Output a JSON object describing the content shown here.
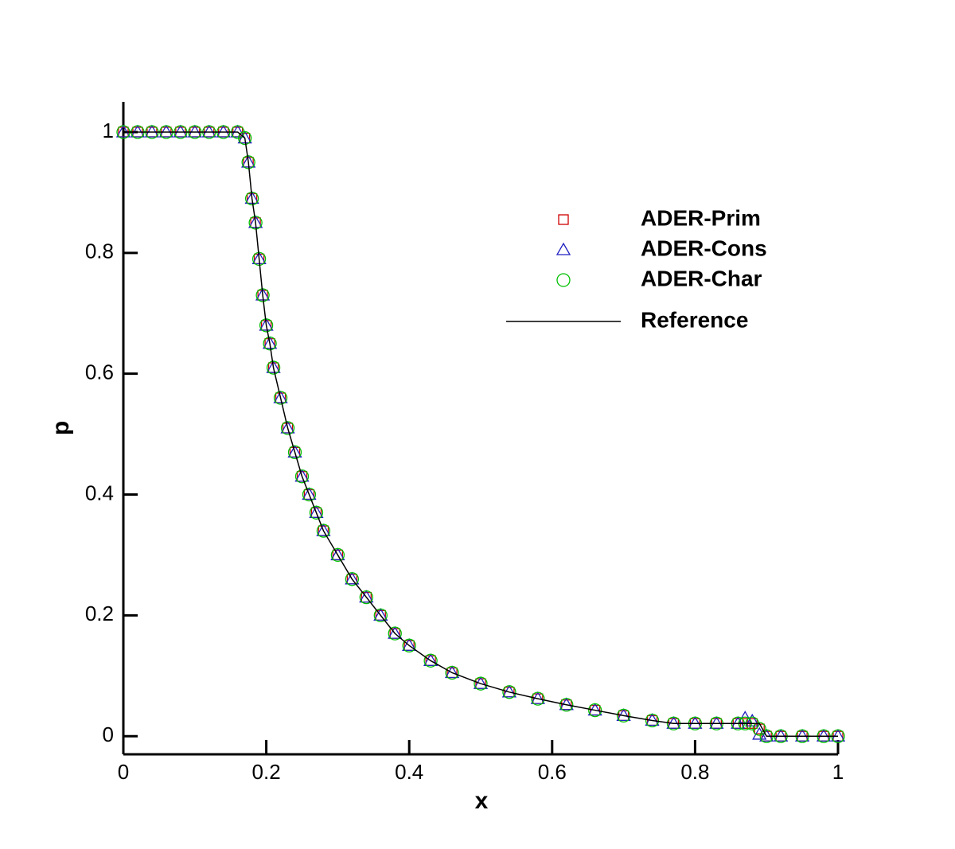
{
  "chart_data": {
    "type": "scatter",
    "xlabel": "x",
    "ylabel": "p",
    "x": [
      0,
      0.02,
      0.04,
      0.06,
      0.08,
      0.1,
      0.12,
      0.14,
      0.16,
      0.17,
      0.175,
      0.18,
      0.185,
      0.19,
      0.195,
      0.2,
      0.205,
      0.21,
      0.22,
      0.23,
      0.24,
      0.25,
      0.26,
      0.27,
      0.28,
      0.3,
      0.32,
      0.34,
      0.36,
      0.38,
      0.4,
      0.43,
      0.46,
      0.5,
      0.54,
      0.58,
      0.62,
      0.66,
      0.7,
      0.74,
      0.77,
      0.8,
      0.83,
      0.86,
      0.87,
      0.88,
      0.89,
      0.9,
      0.92,
      0.95,
      0.98,
      1
    ],
    "series": [
      {
        "name": "ADER-Prim",
        "color": "#d00000",
        "marker": "square",
        "values": [
          1,
          1,
          1,
          1,
          1,
          1,
          1,
          1,
          1,
          0.99,
          0.95,
          0.89,
          0.85,
          0.79,
          0.73,
          0.68,
          0.65,
          0.61,
          0.56,
          0.51,
          0.47,
          0.43,
          0.4,
          0.37,
          0.34,
          0.3,
          0.26,
          0.23,
          0.2,
          0.17,
          0.15,
          0.125,
          0.105,
          0.087,
          0.073,
          0.062,
          0.052,
          0.043,
          0.034,
          0.026,
          0.021,
          0.021,
          0.021,
          0.021,
          0.021,
          0.021,
          0.012,
          0,
          0,
          0,
          0,
          0
        ]
      },
      {
        "name": "ADER-Cons",
        "color": "#2020c0",
        "marker": "triangle",
        "values": [
          1,
          1,
          1,
          1,
          1,
          1,
          1,
          1,
          1,
          0.99,
          0.95,
          0.89,
          0.85,
          0.79,
          0.73,
          0.68,
          0.65,
          0.61,
          0.56,
          0.51,
          0.47,
          0.43,
          0.4,
          0.37,
          0.34,
          0.3,
          0.26,
          0.23,
          0.2,
          0.17,
          0.15,
          0.125,
          0.105,
          0.087,
          0.073,
          0.062,
          0.052,
          0.043,
          0.034,
          0.026,
          0.021,
          0.021,
          0.021,
          0.021,
          0.03,
          0.025,
          0.003,
          0,
          0,
          0,
          0,
          0
        ]
      },
      {
        "name": "ADER-Char",
        "color": "#00c000",
        "marker": "circle",
        "values": [
          1,
          1,
          1,
          1,
          1,
          1,
          1,
          1,
          1,
          0.99,
          0.95,
          0.89,
          0.85,
          0.79,
          0.73,
          0.68,
          0.65,
          0.61,
          0.56,
          0.51,
          0.47,
          0.43,
          0.4,
          0.37,
          0.34,
          0.3,
          0.26,
          0.23,
          0.2,
          0.17,
          0.15,
          0.125,
          0.105,
          0.087,
          0.073,
          0.062,
          0.052,
          0.043,
          0.034,
          0.026,
          0.021,
          0.021,
          0.021,
          0.021,
          0.021,
          0.021,
          0.012,
          0,
          0,
          0,
          0,
          0
        ]
      },
      {
        "name": "Reference",
        "color": "#000000",
        "marker": "line",
        "values": [
          1,
          1,
          1,
          1,
          1,
          1,
          1,
          1,
          1,
          0.99,
          0.95,
          0.89,
          0.85,
          0.79,
          0.73,
          0.68,
          0.65,
          0.61,
          0.56,
          0.51,
          0.47,
          0.43,
          0.4,
          0.37,
          0.34,
          0.3,
          0.26,
          0.23,
          0.2,
          0.17,
          0.15,
          0.125,
          0.105,
          0.087,
          0.073,
          0.062,
          0.052,
          0.043,
          0.034,
          0.026,
          0.021,
          0.021,
          0.021,
          0.021,
          0.021,
          0.021,
          0.021,
          0,
          0,
          0,
          0,
          0
        ]
      }
    ],
    "xlim": [
      0,
      1
    ],
    "ylim": [
      -0.03,
      1.05
    ],
    "xticks": [
      0,
      0.2,
      0.4,
      0.6,
      0.8,
      1
    ],
    "yticks": [
      0,
      0.2,
      0.4,
      0.6,
      0.8,
      1
    ]
  }
}
